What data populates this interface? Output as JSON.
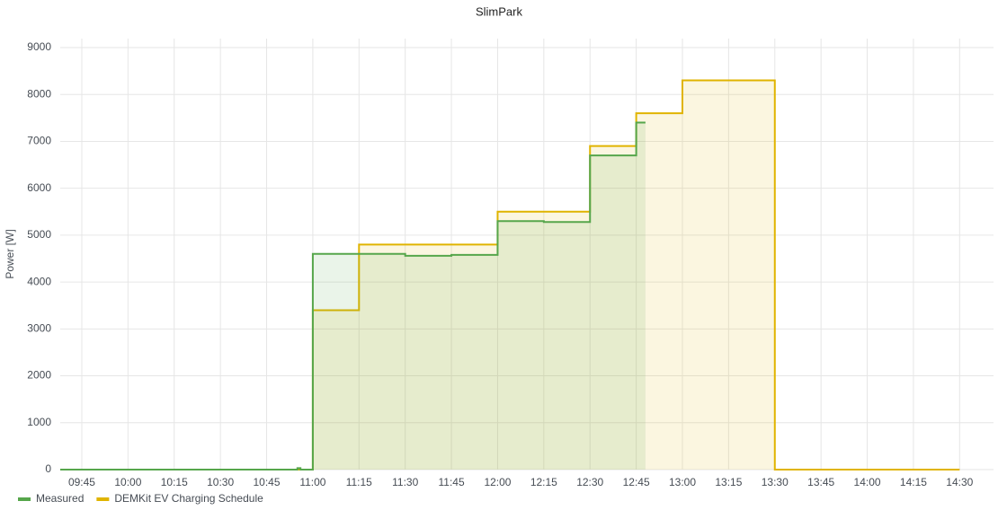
{
  "chart_data": {
    "type": "line",
    "title": "SlimPark",
    "y_label": "Power [W]",
    "step": true,
    "grid": true,
    "xlim": [
      "09:38",
      "14:41"
    ],
    "xticks": [
      "09:45",
      "10:00",
      "10:15",
      "10:30",
      "10:45",
      "11:00",
      "11:15",
      "11:30",
      "11:45",
      "12:00",
      "12:15",
      "12:30",
      "12:45",
      "13:00",
      "13:15",
      "13:30",
      "13:45",
      "14:00",
      "14:15",
      "14:30"
    ],
    "ylim": [
      0,
      9000
    ],
    "yticks": [
      0,
      1000,
      2000,
      3000,
      4000,
      5000,
      6000,
      7000,
      8000,
      9000
    ],
    "series": [
      {
        "name": "Measured",
        "color": "#56a64b",
        "x": [
          "09:38",
          "10:55",
          "10:56",
          "11:00",
          "11:15",
          "11:30",
          "11:45",
          "12:00",
          "12:15",
          "12:30",
          "12:45",
          "12:48"
        ],
        "values": [
          0,
          30,
          0,
          4600,
          4600,
          4560,
          4580,
          5300,
          5280,
          6700,
          7400,
          7400
        ]
      },
      {
        "name": "DEMKit EV Charging Schedule",
        "color": "#e0b400",
        "x": [
          "09:38",
          "11:00",
          "11:15",
          "12:00",
          "12:30",
          "12:45",
          "13:00",
          "13:30",
          "14:30"
        ],
        "values": [
          0,
          3400,
          4800,
          5500,
          6900,
          7600,
          8300,
          0,
          0
        ]
      }
    ]
  }
}
